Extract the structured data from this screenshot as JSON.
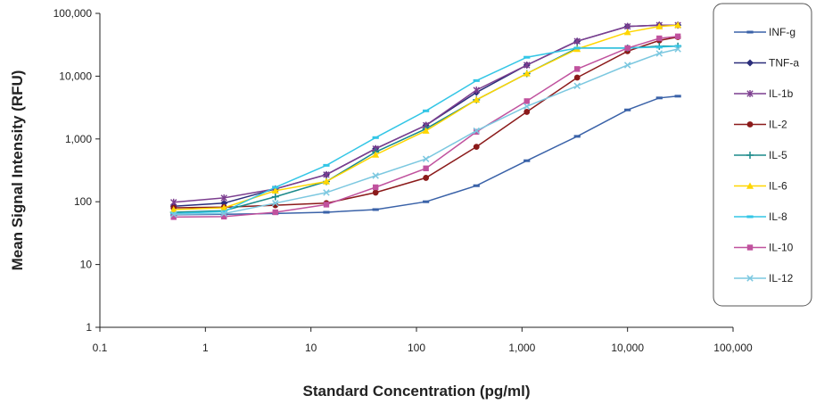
{
  "chart_data": {
    "type": "line",
    "title": "",
    "xlabel": "Standard Concentration (pg/ml)",
    "ylabel": "Mean Signal Intensity (RFU)",
    "x_scale": "log",
    "y_scale": "log",
    "xlim": [
      0.1,
      100000
    ],
    "ylim": [
      1,
      100000
    ],
    "x_ticks": [
      0.1,
      1,
      10,
      100,
      1000,
      10000,
      100000
    ],
    "x_tick_labels": [
      "0.1",
      "1",
      "10",
      "100",
      "1,000",
      "10,000",
      "100,000"
    ],
    "y_ticks": [
      1,
      10,
      100,
      1000,
      10000,
      100000
    ],
    "y_tick_labels": [
      "1",
      "10",
      "100",
      "1,000",
      "10,000",
      "100,000"
    ],
    "grid": false,
    "legend_position": "right",
    "x": [
      0.5,
      1.5,
      4.6,
      14,
      41,
      123,
      370,
      1111,
      3333,
      10000,
      20000,
      30000
    ],
    "series": [
      {
        "name": "INF-g",
        "color": "#3a62a8",
        "marker": "dash",
        "values": [
          62,
          63,
          65,
          68,
          75,
          100,
          180,
          450,
          1100,
          2900,
          4500,
          4800
        ]
      },
      {
        "name": "TNF-a",
        "color": "#2b2d7a",
        "marker": "diamond",
        "values": [
          85,
          95,
          160,
          270,
          700,
          1650,
          5500,
          15000,
          36000,
          62000,
          65000,
          65000
        ]
      },
      {
        "name": "IL-1b",
        "color": "#7c3e8f",
        "marker": "star",
        "values": [
          98,
          115,
          160,
          270,
          700,
          1650,
          6000,
          15000,
          36000,
          62000,
          65000,
          65000
        ]
      },
      {
        "name": "IL-2",
        "color": "#8b1a1a",
        "marker": "circle",
        "values": [
          80,
          82,
          88,
          95,
          140,
          240,
          750,
          2700,
          9500,
          25000,
          37000,
          42000
        ]
      },
      {
        "name": "IL-5",
        "color": "#1b8a8a",
        "marker": "plus",
        "values": [
          68,
          72,
          120,
          210,
          620,
          1450,
          4200,
          11000,
          28000,
          28000,
          30000,
          30000
        ]
      },
      {
        "name": "IL-6",
        "color": "#ffd600",
        "marker": "triangle",
        "values": [
          75,
          80,
          150,
          210,
          560,
          1350,
          4200,
          11000,
          27000,
          50000,
          62000,
          65000
        ]
      },
      {
        "name": "IL-8",
        "color": "#33c6e6",
        "marker": "dash",
        "values": [
          65,
          70,
          170,
          380,
          1050,
          2800,
          8500,
          20000,
          28000,
          28000,
          29000,
          30000
        ]
      },
      {
        "name": "IL-10",
        "color": "#c0529e",
        "marker": "square",
        "values": [
          57,
          58,
          68,
          90,
          170,
          340,
          1300,
          4000,
          13000,
          28000,
          40000,
          43000
        ]
      },
      {
        "name": "IL-12",
        "color": "#7cc8e0",
        "marker": "x",
        "values": [
          63,
          65,
          95,
          140,
          260,
          480,
          1350,
          3300,
          7000,
          15000,
          23000,
          27000
        ]
      }
    ]
  }
}
